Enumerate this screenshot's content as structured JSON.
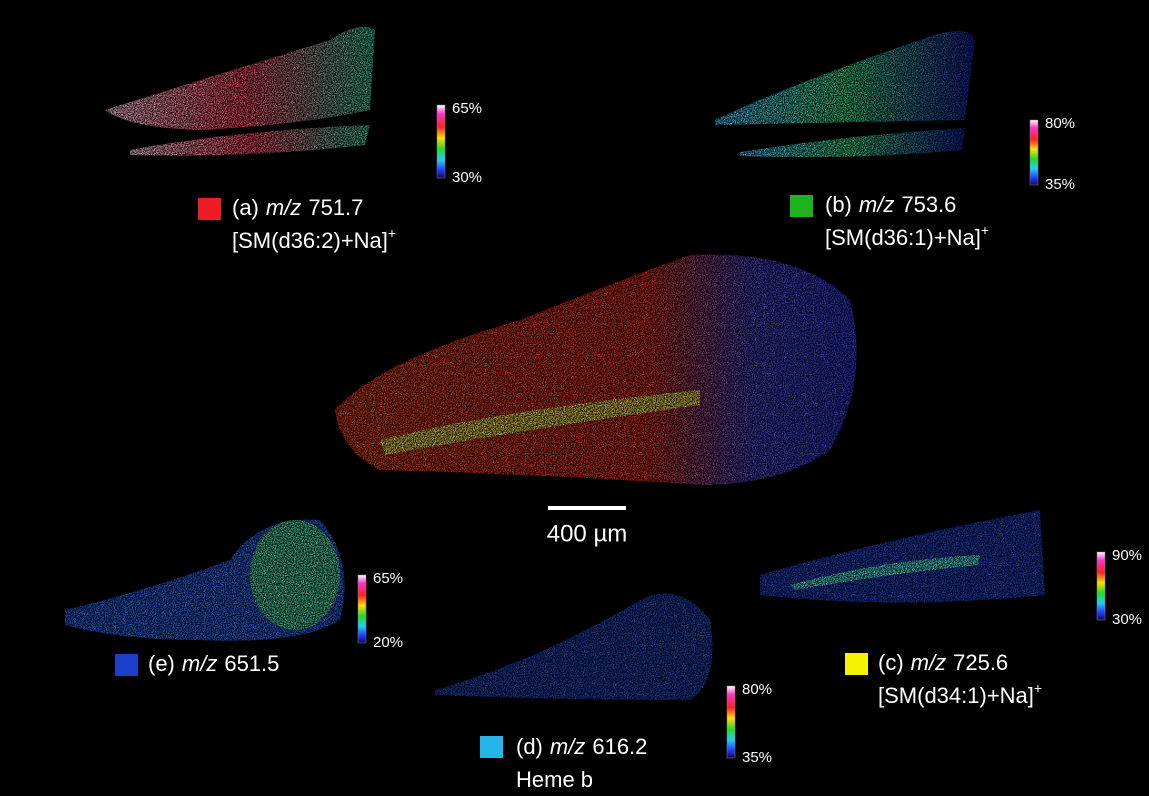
{
  "panels": [
    {
      "letter": "(a)",
      "mz_label": "m/z",
      "mz": "751.7",
      "ion": "[SM(d36:2)+Na]",
      "charge": "+",
      "scale_max": "65%",
      "scale_min": "30%",
      "color": "#ee1c24"
    },
    {
      "letter": "(b)",
      "mz_label": "m/z",
      "mz": "753.6",
      "ion": "[SM(d36:1)+Na]",
      "charge": "+",
      "scale_max": "80%",
      "scale_min": "35%",
      "color": "#1db31d"
    },
    {
      "letter": "(c)",
      "mz_label": "m/z",
      "mz": "725.6",
      "ion": "[SM(d34:1)+Na]",
      "charge": "+",
      "scale_max": "90%",
      "scale_min": "30%",
      "color": "#f5f200"
    },
    {
      "letter": "(d)",
      "mz_label": "m/z",
      "mz": "616.2",
      "ion": "Heme b",
      "scale_max": "80%",
      "scale_min": "35%",
      "color": "#25b5ea"
    },
    {
      "letter": "(e)",
      "mz_label": "m/z",
      "mz": "651.5",
      "scale_max": "65%",
      "scale_min": "20%",
      "color": "#1b3fc8"
    }
  ],
  "scale_bar": "400 µm"
}
